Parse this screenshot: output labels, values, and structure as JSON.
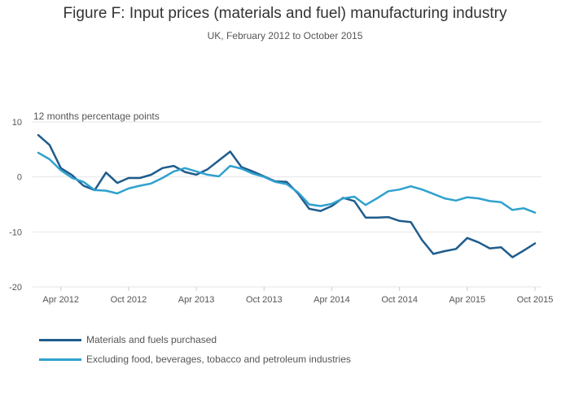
{
  "colors": {
    "series1": "#1f5c8c",
    "series2": "#2fa1cf",
    "grid": "#e6e6e6",
    "tick_text": "#555555"
  },
  "chart_data": {
    "type": "line",
    "title": "Figure F: Input prices (materials and fuel) manufacturing industry",
    "subtitle": "UK, February 2012 to October 2015",
    "ylabel": "12 months percentage points",
    "xlabel": "",
    "ylim": [
      -20,
      10
    ],
    "yticks": [
      10,
      0,
      -10,
      -20
    ],
    "ytick_labels": [
      "10",
      "0",
      "-10",
      "-20"
    ],
    "xticks": [
      {
        "label": "Apr 2012",
        "month_index": 2
      },
      {
        "label": "Oct 2012",
        "month_index": 8
      },
      {
        "label": "Apr 2013",
        "month_index": 14
      },
      {
        "label": "Oct 2013",
        "month_index": 20
      },
      {
        "label": "Apr 2014",
        "month_index": 26
      },
      {
        "label": "Oct 2014",
        "month_index": 32
      },
      {
        "label": "Apr 2015",
        "month_index": 38
      },
      {
        "label": "Oct 2015",
        "month_index": 44
      }
    ],
    "x_range": [
      0,
      44
    ],
    "series": [
      {
        "name": "Materials and fuels purchased",
        "color_key": "series1",
        "values": [
          7.6,
          5.8,
          1.6,
          0.3,
          -1.6,
          -2.4,
          0.8,
          -1.1,
          -0.2,
          -0.2,
          0.4,
          1.6,
          2.0,
          0.9,
          0.4,
          1.4,
          3.0,
          4.6,
          1.8,
          1.0,
          0.1,
          -0.8,
          -0.9,
          -3.0,
          -5.8,
          -6.2,
          -5.3,
          -3.8,
          -4.4,
          -7.4,
          -7.4,
          -7.3,
          -8.0,
          -8.2,
          -11.5,
          -14.0,
          -13.5,
          -13.1,
          -11.1,
          -11.9,
          -13.0,
          -12.8,
          -14.6,
          -13.4,
          -12.1
        ]
      },
      {
        "name": "Excluding food, beverages, tobacco and petroleum industries",
        "color_key": "series2",
        "values": [
          4.4,
          3.2,
          1.2,
          -0.2,
          -0.9,
          -2.4,
          -2.5,
          -3.0,
          -2.1,
          -1.6,
          -1.2,
          -0.2,
          1.0,
          1.6,
          1.0,
          0.4,
          0.1,
          2.0,
          1.5,
          0.6,
          0.0,
          -0.9,
          -1.3,
          -2.8,
          -5.0,
          -5.3,
          -4.9,
          -3.9,
          -3.6,
          -5.1,
          -3.9,
          -2.6,
          -2.3,
          -1.7,
          -2.3,
          -3.1,
          -3.9,
          -4.3,
          -3.7,
          -3.9,
          -4.4,
          -4.6,
          -6.0,
          -5.7,
          -6.5
        ]
      }
    ]
  }
}
